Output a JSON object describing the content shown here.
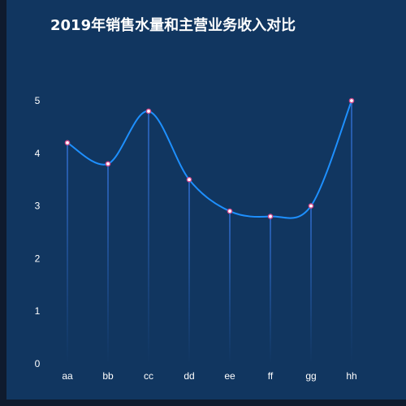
{
  "chart_data": {
    "type": "line",
    "title": "2019年销售水量和主营业务收入对比",
    "categories": [
      "aa",
      "bb",
      "cc",
      "dd",
      "ee",
      "ff",
      "gg",
      "hh"
    ],
    "series": [
      {
        "values": [
          4.2,
          3.8,
          4.8,
          3.5,
          2.9,
          2.8,
          3.0,
          5.0
        ]
      }
    ],
    "ylim": [
      0,
      5
    ],
    "yticks": [
      "0",
      "1",
      "2",
      "3",
      "4",
      "5"
    ],
    "xlabel": "",
    "ylabel": "",
    "grid": false,
    "smooth": true,
    "colors": {
      "background": "#113660",
      "outer": "#0f1b2e",
      "line": "#1e90ff",
      "drop_line": "#2a62b8",
      "marker_fill": "#ffffff",
      "marker_stroke": "#d44a8c",
      "text": "#ffffff"
    }
  }
}
